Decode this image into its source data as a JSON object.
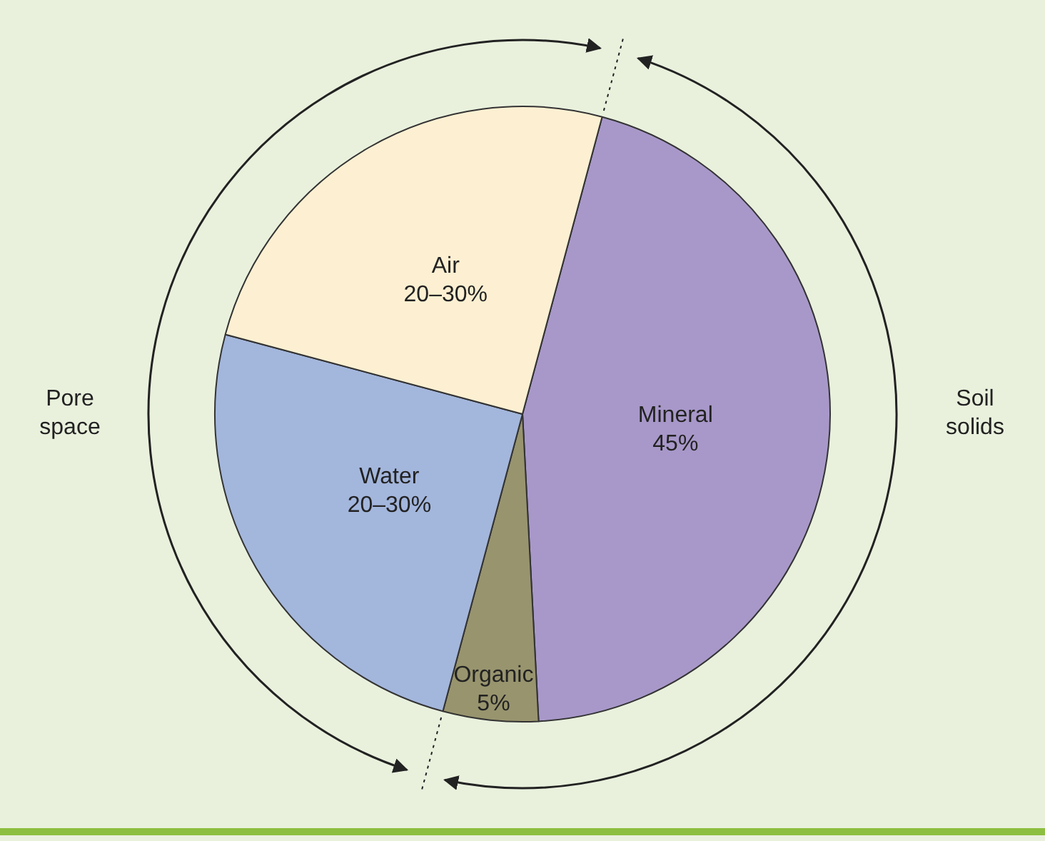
{
  "chart_data": {
    "type": "pie",
    "categories": [
      "Mineral",
      "Organic",
      "Water",
      "Air"
    ],
    "values": [
      45,
      5,
      25,
      25
    ],
    "value_labels": [
      "45%",
      "5%",
      null,
      null
    ],
    "colors": [
      "#a898c9",
      "#98946e",
      "#a3b6dc",
      "#fdf0d2"
    ],
    "annotations": [
      "Pore space",
      "Soil solids",
      {
        "text": "20–30%",
        "x": "Water"
      },
      {
        "text": "20–30%",
        "x": "Air"
      }
    ],
    "legend": false
  }
}
